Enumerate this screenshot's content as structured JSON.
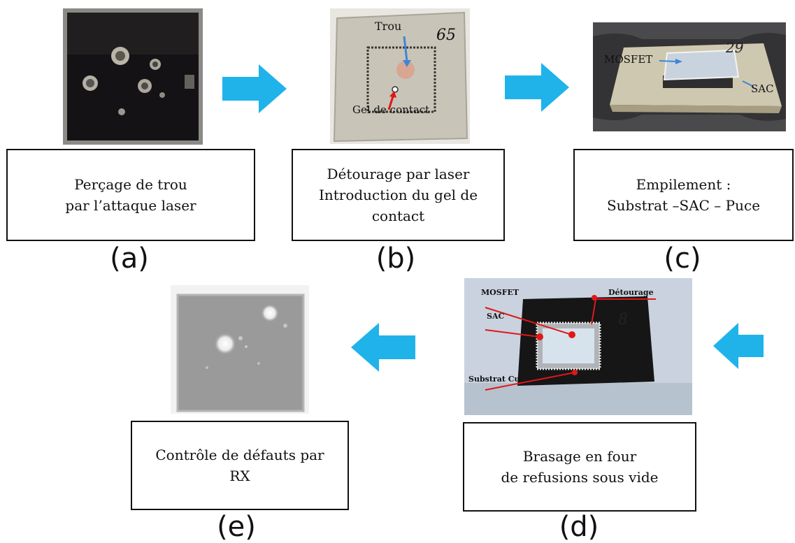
{
  "steps": {
    "a": {
      "letter": "(a)",
      "lines": [
        "Perçage de trou",
        "par l’attaque laser"
      ]
    },
    "b": {
      "letter": "(b)",
      "lines": [
        "Détourage par laser",
        "Introduction du gel de",
        "contact"
      ],
      "photo_labels": {
        "hole": "Trou",
        "gel": "Gel de contact",
        "number": "65"
      }
    },
    "c": {
      "letter": "(c)",
      "lines": [
        "Empilement :",
        "Substrat –SAC – Puce"
      ],
      "photo_labels": {
        "mosfet": "MOSFET",
        "sac": "SAC",
        "number": "29"
      }
    },
    "d": {
      "letter": "(d)",
      "lines": [
        "Brasage en four",
        "de refusions sous vide"
      ],
      "photo_labels": {
        "mosfet": "MOSFET",
        "detourage": "Détourage",
        "sac": "SAC",
        "substrat": "Substrat Cu",
        "number": "8"
      }
    },
    "e": {
      "letter": "(e)",
      "lines": [
        "Contrôle de défauts par",
        "RX"
      ]
    }
  },
  "colors": {
    "arrow": "#1fb3ea",
    "label_blue": "#3d86d6",
    "label_red": "#e01818"
  }
}
